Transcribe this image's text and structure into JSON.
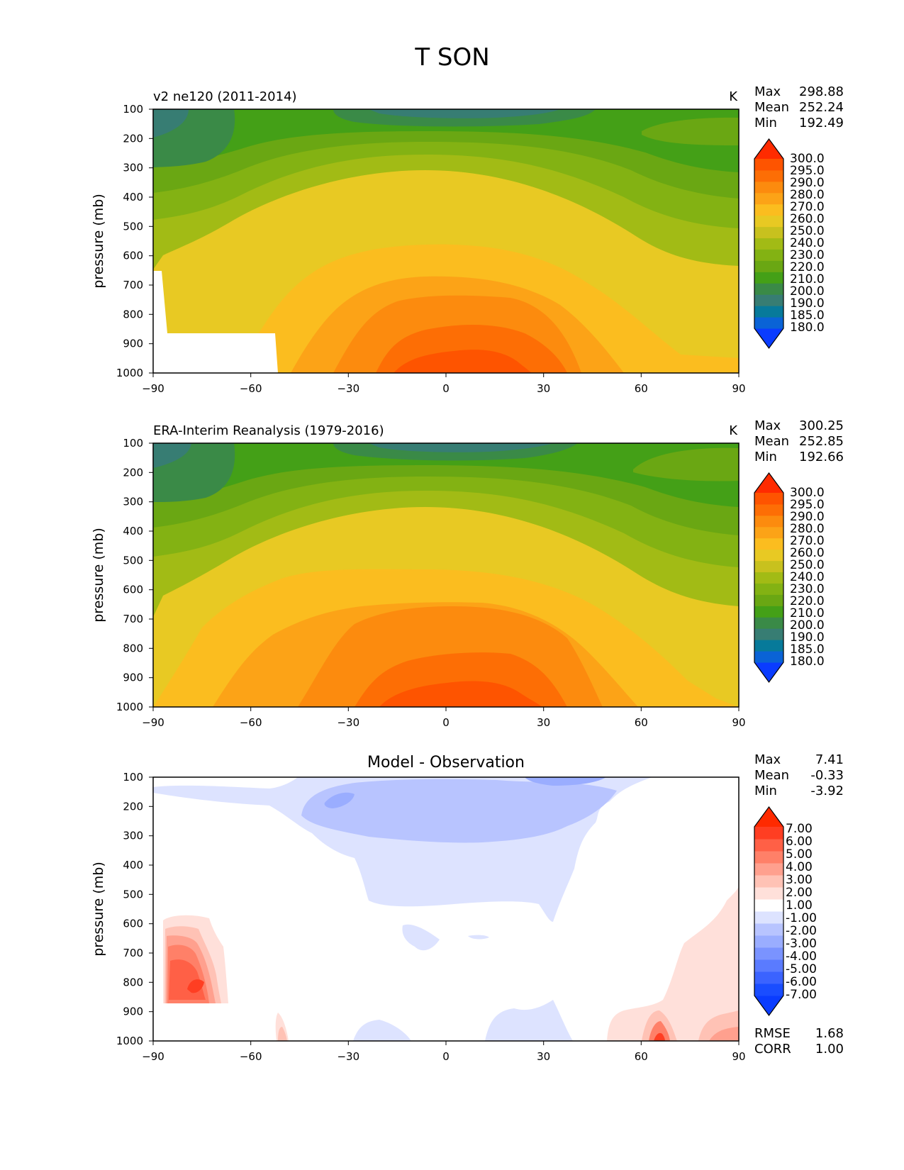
{
  "title": "T SON",
  "chart_data": [
    {
      "type": "heatmap",
      "title": "v2 ne120 (2011-2014)",
      "units": "K",
      "stats": {
        "max_label": "Max",
        "max": "298.88",
        "mean_label": "Mean",
        "mean": "252.24",
        "min_label": "Min",
        "min": "192.49"
      },
      "xlabel": "",
      "ylabel": "pressure (mb)",
      "xlim": [
        -90,
        90
      ],
      "ylim": [
        1000,
        100
      ],
      "xticks": [
        "−90",
        "−60",
        "−30",
        "0",
        "30",
        "60",
        "90"
      ],
      "xtick_values": [
        -90,
        -60,
        -30,
        0,
        30,
        60,
        90
      ],
      "yticks": [
        "100",
        "200",
        "300",
        "400",
        "500",
        "600",
        "700",
        "800",
        "900",
        "1000"
      ],
      "ytick_values": [
        100,
        200,
        300,
        400,
        500,
        600,
        700,
        800,
        900,
        1000
      ],
      "colorbar": {
        "levels": [
          "180.0",
          "185.0",
          "190.0",
          "200.0",
          "210.0",
          "220.0",
          "230.0",
          "240.0",
          "250.0",
          "260.0",
          "270.0",
          "280.0",
          "290.0",
          "295.0",
          "300.0"
        ],
        "colors": [
          "#0a3cff",
          "#0a63d6",
          "#077a9a",
          "#377d73",
          "#3a8a47",
          "#44a017",
          "#6aa713",
          "#83b213",
          "#a2bb15",
          "#c8c11e",
          "#e8c923",
          "#fbbd1f",
          "#fca317",
          "#fc8b0e",
          "#fd6e05",
          "#fe5400",
          "#ff2b00"
        ],
        "extend": "both"
      },
      "missing_region": "surface below terrain (white) from −90 to −52 near 870–1000 mb"
    },
    {
      "type": "heatmap",
      "title": "ERA-Interim Reanalysis (1979-2016)",
      "units": "K",
      "stats": {
        "max_label": "Max",
        "max": "300.25",
        "mean_label": "Mean",
        "mean": "252.85",
        "min_label": "Min",
        "min": "192.66"
      },
      "xlabel": "",
      "ylabel": "pressure (mb)",
      "xlim": [
        -90,
        90
      ],
      "ylim": [
        1000,
        100
      ],
      "xticks": [
        "−90",
        "−60",
        "−30",
        "0",
        "30",
        "60",
        "90"
      ],
      "xtick_values": [
        -90,
        -60,
        -30,
        0,
        30,
        60,
        90
      ],
      "yticks": [
        "100",
        "200",
        "300",
        "400",
        "500",
        "600",
        "700",
        "800",
        "900",
        "1000"
      ],
      "ytick_values": [
        100,
        200,
        300,
        400,
        500,
        600,
        700,
        800,
        900,
        1000
      ],
      "colorbar": {
        "levels": [
          "180.0",
          "185.0",
          "190.0",
          "200.0",
          "210.0",
          "220.0",
          "230.0",
          "240.0",
          "250.0",
          "260.0",
          "270.0",
          "280.0",
          "290.0",
          "295.0",
          "300.0"
        ],
        "colors": [
          "#0a3cff",
          "#0a63d6",
          "#077a9a",
          "#377d73",
          "#3a8a47",
          "#44a017",
          "#6aa713",
          "#83b213",
          "#a2bb15",
          "#c8c11e",
          "#e8c923",
          "#fbbd1f",
          "#fca317",
          "#fc8b0e",
          "#fd6e05",
          "#fe5400",
          "#ff2b00"
        ],
        "extend": "both"
      }
    },
    {
      "type": "heatmap",
      "title": "Model - Observation",
      "units": "",
      "stats": {
        "max_label": "Max",
        "max": "7.41",
        "mean_label": "Mean",
        "mean": "-0.33",
        "min_label": "Min",
        "min": "-3.92"
      },
      "extra_stats": {
        "rmse_label": "RMSE",
        "rmse": "1.68",
        "corr_label": "CORR",
        "corr": "1.00"
      },
      "xlabel": "",
      "ylabel": "pressure (mb)",
      "xlim": [
        -90,
        90
      ],
      "ylim": [
        1000,
        100
      ],
      "xticks": [
        "−90",
        "−60",
        "−30",
        "0",
        "30",
        "60",
        "90"
      ],
      "xtick_values": [
        -90,
        -60,
        -30,
        0,
        30,
        60,
        90
      ],
      "yticks": [
        "100",
        "200",
        "300",
        "400",
        "500",
        "600",
        "700",
        "800",
        "900",
        "1000"
      ],
      "ytick_values": [
        100,
        200,
        300,
        400,
        500,
        600,
        700,
        800,
        900,
        1000
      ],
      "colorbar": {
        "levels": [
          "-7.00",
          "-6.00",
          "-5.00",
          "-4.00",
          "-3.00",
          "-2.00",
          "-1.00",
          "1.00",
          "2.00",
          "3.00",
          "4.00",
          "5.00",
          "6.00",
          "7.00"
        ],
        "colors": [
          "#0a3cff",
          "#1a4dff",
          "#3b63ff",
          "#5a7bff",
          "#7a93ff",
          "#9aadff",
          "#b8c4ff",
          "#dde3ff",
          "#ffffff",
          "#ffe0da",
          "#ffc2b5",
          "#ffa08e",
          "#ff8068",
          "#ff6046",
          "#ff3e22",
          "#ff2a00"
        ],
        "extend": "both"
      }
    }
  ]
}
